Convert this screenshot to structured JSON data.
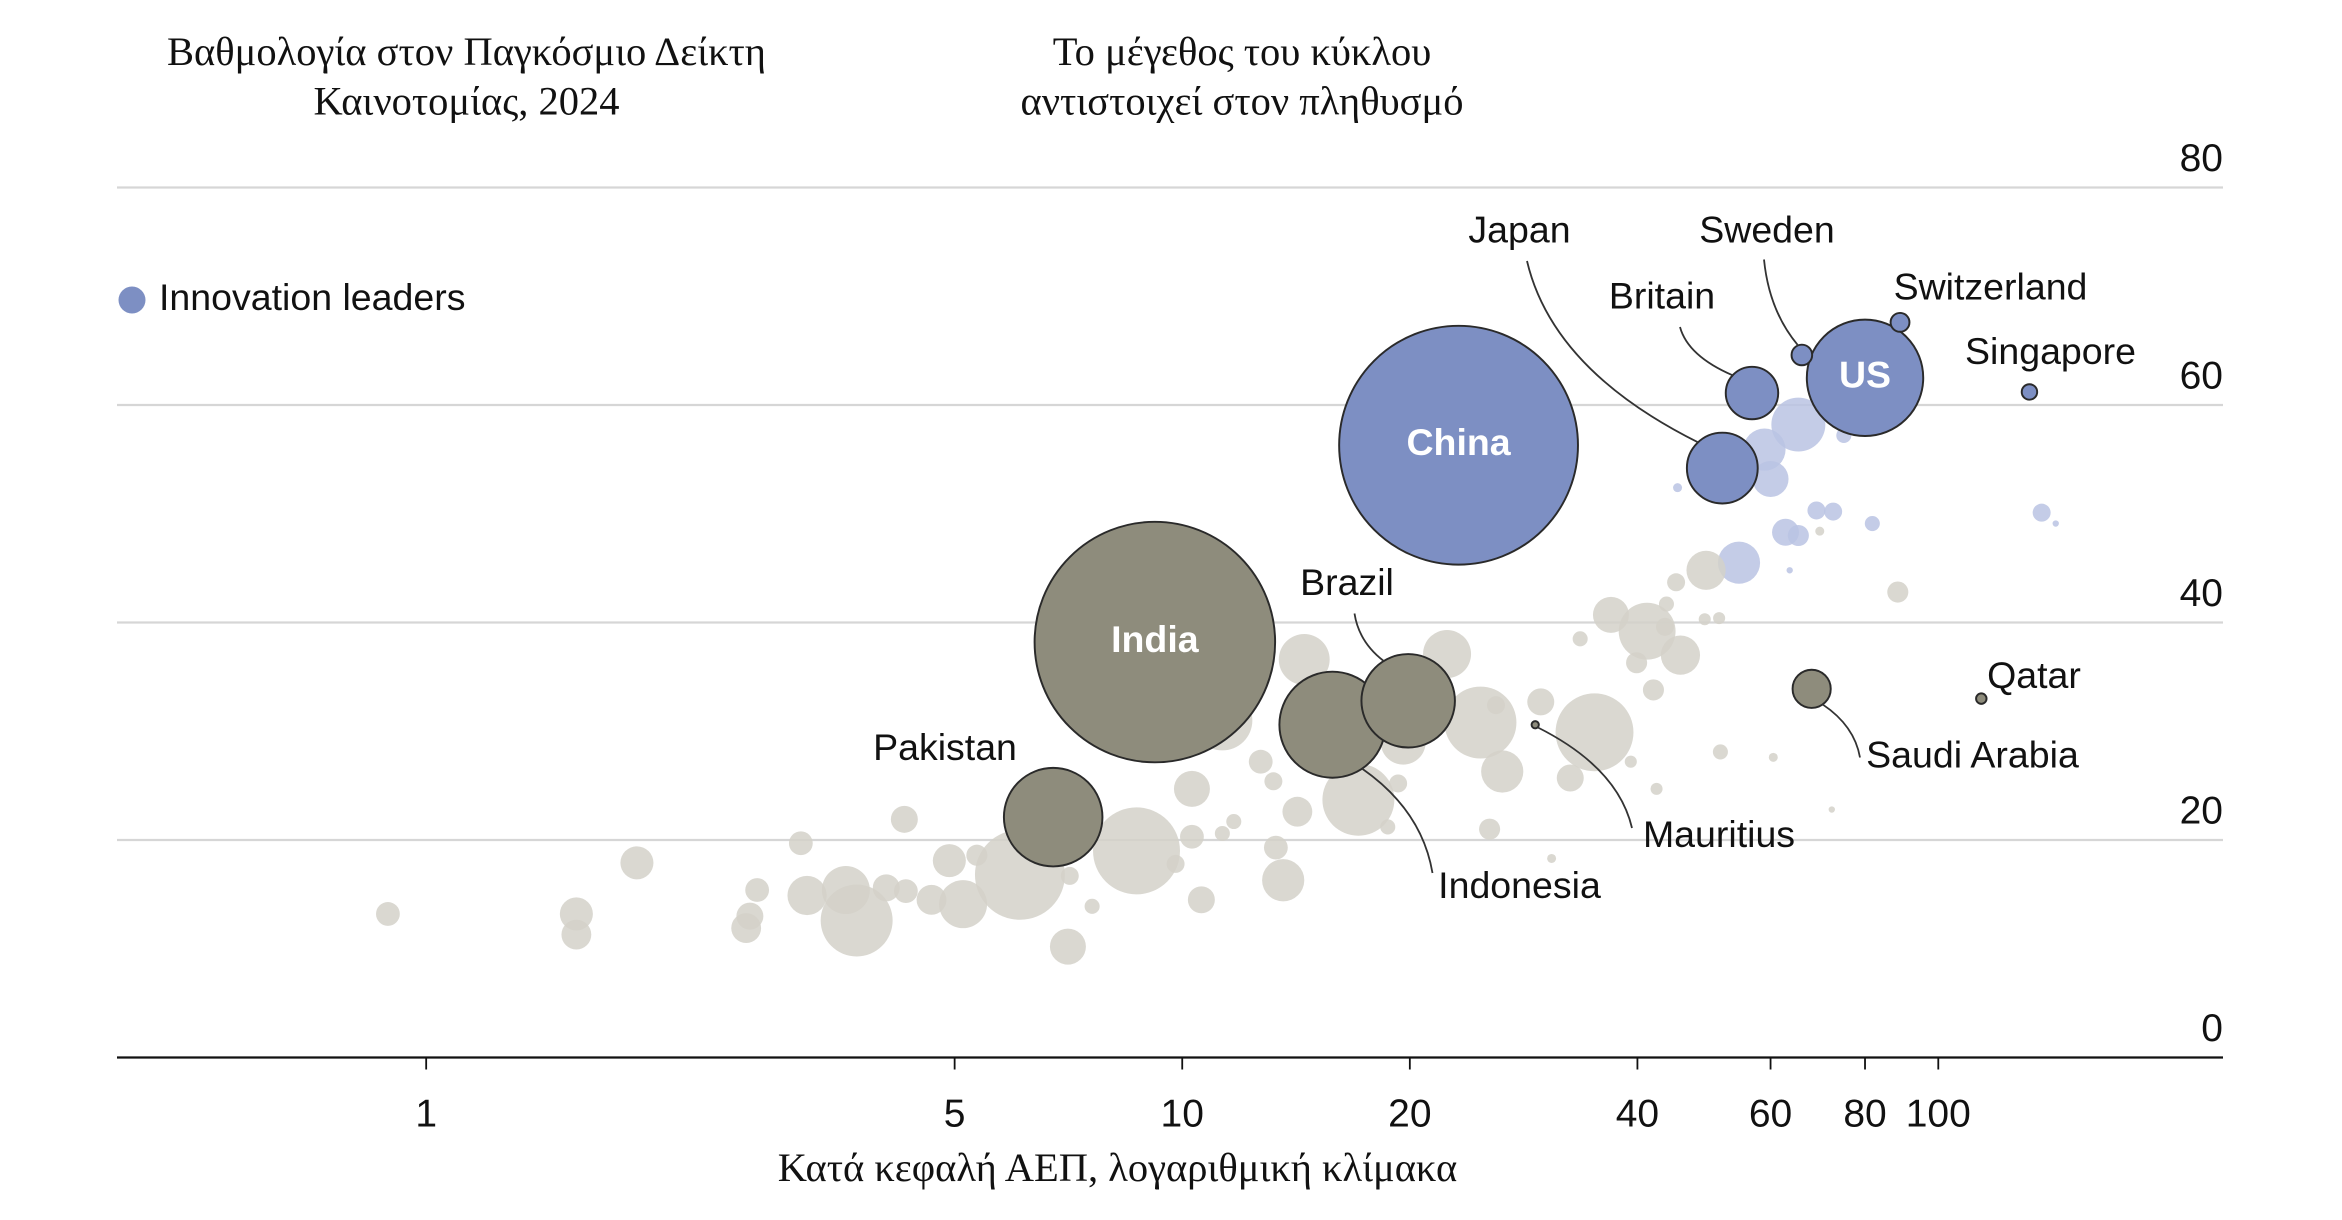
{
  "chart_data": {
    "type": "bubble",
    "title": [
      "Βαθμολογία στον Παγκόσμιο Δείκτη",
      "Καινοτομίας, 2024"
    ],
    "annotation": [
      "Το μέγεθος του κύκλου",
      "αντιστοιχεί στον πληθυσμό"
    ],
    "x_label": "Κατά κεφαλή ΑΕΠ, λογαριθμική κλίμακα",
    "x_log": true,
    "xlim": [
      0.39,
      238
    ],
    "xticks": [
      1,
      5,
      10,
      20,
      40,
      60,
      80,
      100
    ],
    "ylim": [
      0,
      80
    ],
    "yticks": [
      0,
      20,
      40,
      60,
      80
    ],
    "grid": true,
    "legend": "upper left",
    "series": [
      {
        "name": "Innovation leaders",
        "color": "#7d8fc3",
        "faded_color": "#bac3e3",
        "points": [
          {
            "x": 23.2,
            "y": 56.3,
            "size": 1410,
            "label": "China"
          },
          {
            "x": 80,
            "y": 62.5,
            "size": 335,
            "label": "US"
          },
          {
            "x": 51.8,
            "y": 54.2,
            "size": 124,
            "label": "Japan"
          },
          {
            "x": 56.7,
            "y": 61.1,
            "size": 68,
            "label": "Britain"
          },
          {
            "x": 66,
            "y": 64.6,
            "size": 10.5,
            "label": "Sweden"
          },
          {
            "x": 89,
            "y": 67.6,
            "size": 8.8,
            "label": "Switzerland"
          },
          {
            "x": 132,
            "y": 61.2,
            "size": 5.9,
            "label": "Singapore"
          },
          {
            "x": 54.5,
            "y": 45.5,
            "size": 44
          },
          {
            "x": 62.8,
            "y": 48.3,
            "size": 18
          },
          {
            "x": 65.3,
            "y": 48.0,
            "size": 11
          },
          {
            "x": 69,
            "y": 50.3,
            "size": 8
          },
          {
            "x": 72.6,
            "y": 50.2,
            "size": 8
          },
          {
            "x": 60,
            "y": 53.2,
            "size": 32
          },
          {
            "x": 58.9,
            "y": 55.9,
            "size": 44
          },
          {
            "x": 65.3,
            "y": 58.2,
            "size": 72
          },
          {
            "x": 75,
            "y": 57.2,
            "size": 5.6
          },
          {
            "x": 45.2,
            "y": 52.4,
            "size": 2
          },
          {
            "x": 81.8,
            "y": 49.1,
            "size": 5.6
          },
          {
            "x": 137,
            "y": 50.1,
            "size": 8
          },
          {
            "x": 143,
            "y": 49.1,
            "size": 1
          },
          {
            "x": 63.6,
            "y": 44.8,
            "size": 1
          }
        ]
      },
      {
        "name": null,
        "color": "#8e8c7c",
        "faded_color": "#d3d1c9",
        "points": [
          {
            "x": 9.2,
            "y": 38.2,
            "size": 1430,
            "label": "India"
          },
          {
            "x": 19.9,
            "y": 32.8,
            "size": 216,
            "label": "Brazil"
          },
          {
            "x": 15.8,
            "y": 30.6,
            "size": 278,
            "label": "Indonesia"
          },
          {
            "x": 6.75,
            "y": 22.1,
            "size": 240,
            "label": "Pakistan"
          },
          {
            "x": 68,
            "y": 33.9,
            "size": 36,
            "label": "Saudi Arabia"
          },
          {
            "x": 114,
            "y": 33.0,
            "size": 2.7,
            "label": "Qatar"
          },
          {
            "x": 29.3,
            "y": 30.6,
            "size": 1.3,
            "label": "Mauritius"
          },
          {
            "x": 0.89,
            "y": 13.2,
            "size": 14
          },
          {
            "x": 1.58,
            "y": 13.2,
            "size": 27
          },
          {
            "x": 1.58,
            "y": 11.3,
            "size": 22
          },
          {
            "x": 1.9,
            "y": 17.9,
            "size": 27
          },
          {
            "x": 2.65,
            "y": 11.9,
            "size": 22
          },
          {
            "x": 2.68,
            "y": 13.0,
            "size": 18
          },
          {
            "x": 2.74,
            "y": 15.4,
            "size": 14
          },
          {
            "x": 3.13,
            "y": 19.7,
            "size": 14
          },
          {
            "x": 3.19,
            "y": 14.9,
            "size": 38
          },
          {
            "x": 3.59,
            "y": 15.4,
            "size": 57
          },
          {
            "x": 3.71,
            "y": 12.6,
            "size": 128
          },
          {
            "x": 4.06,
            "y": 15.6,
            "size": 18
          },
          {
            "x": 4.29,
            "y": 21.9,
            "size": 18
          },
          {
            "x": 4.31,
            "y": 15.3,
            "size": 14
          },
          {
            "x": 4.66,
            "y": 14.5,
            "size": 22
          },
          {
            "x": 4.92,
            "y": 18.1,
            "size": 27
          },
          {
            "x": 5.13,
            "y": 14.1,
            "size": 57
          },
          {
            "x": 5.35,
            "y": 18.6,
            "size": 11
          },
          {
            "x": 6.1,
            "y": 16.8,
            "size": 200
          },
          {
            "x": 7.06,
            "y": 10.2,
            "size": 32
          },
          {
            "x": 7.1,
            "y": 16.7,
            "size": 8
          },
          {
            "x": 7.6,
            "y": 13.9,
            "size": 5.6
          },
          {
            "x": 8.7,
            "y": 19.0,
            "size": 187
          },
          {
            "x": 9.8,
            "y": 17.8,
            "size": 8
          },
          {
            "x": 10.3,
            "y": 24.7,
            "size": 32
          },
          {
            "x": 10.3,
            "y": 20.3,
            "size": 14
          },
          {
            "x": 10.6,
            "y": 14.5,
            "size": 18
          },
          {
            "x": 11.3,
            "y": 20.6,
            "size": 5.6
          },
          {
            "x": 11.7,
            "y": 21.7,
            "size": 5.6
          },
          {
            "x": 11.3,
            "y": 31.0,
            "size": 89
          },
          {
            "x": 12.7,
            "y": 27.2,
            "size": 14
          },
          {
            "x": 13.2,
            "y": 25.4,
            "size": 8
          },
          {
            "x": 13.3,
            "y": 19.3,
            "size": 14
          },
          {
            "x": 13.6,
            "y": 16.3,
            "size": 44
          },
          {
            "x": 14.2,
            "y": 22.6,
            "size": 22
          },
          {
            "x": 14.5,
            "y": 36.6,
            "size": 64
          },
          {
            "x": 17.1,
            "y": 23.7,
            "size": 128
          },
          {
            "x": 18.7,
            "y": 21.2,
            "size": 5.6
          },
          {
            "x": 19.3,
            "y": 25.2,
            "size": 8
          },
          {
            "x": 19.6,
            "y": 29.0,
            "size": 50
          },
          {
            "x": 22.4,
            "y": 37.1,
            "size": 57
          },
          {
            "x": 24.8,
            "y": 30.8,
            "size": 128
          },
          {
            "x": 26.0,
            "y": 32.4,
            "size": 8
          },
          {
            "x": 26.5,
            "y": 26.3,
            "size": 44
          },
          {
            "x": 25.5,
            "y": 21.0,
            "size": 11
          },
          {
            "x": 29.8,
            "y": 32.7,
            "size": 18
          },
          {
            "x": 32.6,
            "y": 25.7,
            "size": 18
          },
          {
            "x": 35.1,
            "y": 29.9,
            "size": 150
          },
          {
            "x": 33.6,
            "y": 38.5,
            "size": 5.6
          },
          {
            "x": 36.9,
            "y": 40.7,
            "size": 32
          },
          {
            "x": 39.9,
            "y": 36.3,
            "size": 11
          },
          {
            "x": 41.2,
            "y": 39.2,
            "size": 80
          },
          {
            "x": 42.0,
            "y": 33.8,
            "size": 11
          },
          {
            "x": 45.6,
            "y": 37.0,
            "size": 38
          },
          {
            "x": 43.5,
            "y": 39.6,
            "size": 8
          },
          {
            "x": 45.0,
            "y": 43.7,
            "size": 8
          },
          {
            "x": 43.7,
            "y": 41.7,
            "size": 5.6
          },
          {
            "x": 49.3,
            "y": 44.8,
            "size": 38
          },
          {
            "x": 49.1,
            "y": 40.3,
            "size": 3.6
          },
          {
            "x": 51.3,
            "y": 40.4,
            "size": 3.6
          },
          {
            "x": 51.5,
            "y": 28.1,
            "size": 5.6
          },
          {
            "x": 60.5,
            "y": 27.6,
            "size": 2
          },
          {
            "x": 69.7,
            "y": 48.4,
            "size": 2
          },
          {
            "x": 88.4,
            "y": 42.8,
            "size": 11
          },
          {
            "x": 42.4,
            "y": 24.7,
            "size": 3.6
          },
          {
            "x": 39.2,
            "y": 27.2,
            "size": 3.6
          },
          {
            "x": 30.8,
            "y": 18.3,
            "size": 2
          },
          {
            "x": 72.3,
            "y": 22.8,
            "size": 1
          }
        ]
      }
    ]
  }
}
